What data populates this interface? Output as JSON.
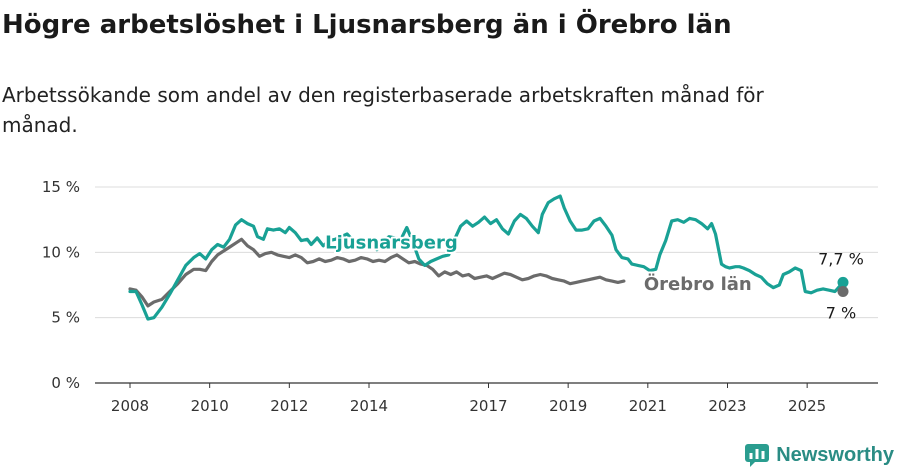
{
  "header": {
    "title": "Högre arbetslöshet i Ljusnarsberg än i Örebro län",
    "subtitle": "Arbetssökande som andel av den registerbaserade arbetskraften månad för månad."
  },
  "brand": {
    "name": "Newsworthy",
    "color": "#2a9d8f"
  },
  "chart_data": {
    "type": "line",
    "title": "Högre arbetslöshet i Ljusnarsberg än i Örebro län",
    "xlabel": "",
    "ylabel": "",
    "xlim": [
      2007.5,
      2025.9
    ],
    "ylim": [
      0,
      15
    ],
    "y_ticks": [
      0,
      5,
      10,
      15
    ],
    "y_tick_labels": [
      "0 %",
      "5 %",
      "10 %",
      "15 %"
    ],
    "x_ticks": [
      2008,
      2010,
      2012,
      2014,
      2017,
      2019,
      2021,
      2023,
      2025
    ],
    "x_tick_labels": [
      "2008",
      "2010",
      "2012",
      "2014",
      "2017",
      "2019",
      "2021",
      "2023",
      "2025"
    ],
    "grid": true,
    "series": [
      {
        "name": "Ljusnarsberg",
        "color": "#19a195",
        "end_label": "7,7 %",
        "points": [
          [
            2008.0,
            7.0
          ],
          [
            2008.15,
            7.0
          ],
          [
            2008.3,
            6.0
          ],
          [
            2008.45,
            4.9
          ],
          [
            2008.6,
            5.0
          ],
          [
            2008.8,
            5.8
          ],
          [
            2009.0,
            6.8
          ],
          [
            2009.2,
            7.9
          ],
          [
            2009.4,
            9.0
          ],
          [
            2009.6,
            9.6
          ],
          [
            2009.75,
            9.9
          ],
          [
            2009.9,
            9.5
          ],
          [
            2010.05,
            10.2
          ],
          [
            2010.2,
            10.6
          ],
          [
            2010.35,
            10.4
          ],
          [
            2010.5,
            11.0
          ],
          [
            2010.65,
            12.1
          ],
          [
            2010.8,
            12.5
          ],
          [
            2010.95,
            12.2
          ],
          [
            2011.1,
            12.0
          ],
          [
            2011.2,
            11.2
          ],
          [
            2011.35,
            11.0
          ],
          [
            2011.45,
            11.8
          ],
          [
            2011.6,
            11.7
          ],
          [
            2011.75,
            11.8
          ],
          [
            2011.9,
            11.5
          ],
          [
            2012.0,
            11.9
          ],
          [
            2012.15,
            11.5
          ],
          [
            2012.3,
            10.9
          ],
          [
            2012.45,
            11.0
          ],
          [
            2012.55,
            10.6
          ],
          [
            2012.7,
            11.1
          ],
          [
            2012.85,
            10.5
          ],
          [
            2013.0,
            10.9
          ],
          [
            2013.15,
            11.0
          ],
          [
            2013.3,
            11.2
          ],
          [
            2013.45,
            11.4
          ],
          [
            2013.6,
            10.9
          ],
          [
            2013.75,
            10.8
          ],
          [
            2013.9,
            11.0
          ],
          [
            2014.05,
            10.9
          ],
          [
            2014.2,
            10.2
          ],
          [
            2014.35,
            10.8
          ],
          [
            2014.5,
            11.2
          ],
          [
            2014.65,
            11.1
          ],
          [
            2014.8,
            11.0
          ],
          [
            2014.95,
            11.9
          ],
          [
            2015.1,
            10.8
          ],
          [
            2015.25,
            9.5
          ],
          [
            2015.4,
            9.0
          ],
          [
            2015.55,
            9.3
          ],
          [
            2015.7,
            9.5
          ],
          [
            2015.85,
            9.7
          ],
          [
            2016.0,
            9.8
          ],
          [
            2016.15,
            11.0
          ],
          [
            2016.3,
            12.0
          ],
          [
            2016.45,
            12.4
          ],
          [
            2016.6,
            12.0
          ],
          [
            2016.75,
            12.3
          ],
          [
            2016.9,
            12.7
          ],
          [
            2017.05,
            12.2
          ],
          [
            2017.2,
            12.5
          ],
          [
            2017.35,
            11.8
          ],
          [
            2017.5,
            11.4
          ],
          [
            2017.65,
            12.4
          ],
          [
            2017.8,
            12.9
          ],
          [
            2017.95,
            12.6
          ],
          [
            2018.1,
            12.0
          ],
          [
            2018.25,
            11.5
          ],
          [
            2018.35,
            12.9
          ],
          [
            2018.5,
            13.8
          ],
          [
            2018.65,
            14.1
          ],
          [
            2018.8,
            14.3
          ],
          [
            2018.9,
            13.4
          ],
          [
            2019.05,
            12.4
          ],
          [
            2019.2,
            11.7
          ],
          [
            2019.35,
            11.7
          ],
          [
            2019.5,
            11.8
          ],
          [
            2019.65,
            12.4
          ],
          [
            2019.8,
            12.6
          ],
          [
            2019.95,
            12.0
          ],
          [
            2020.1,
            11.3
          ],
          [
            2020.2,
            10.2
          ],
          [
            2020.35,
            9.6
          ],
          [
            2020.5,
            9.5
          ],
          [
            2020.6,
            9.1
          ],
          [
            2020.75,
            9.0
          ],
          [
            2020.9,
            8.9
          ],
          [
            2021.05,
            8.6
          ],
          [
            2021.2,
            8.7
          ],
          [
            2021.3,
            9.8
          ],
          [
            2021.45,
            10.9
          ],
          [
            2021.6,
            12.4
          ],
          [
            2021.75,
            12.5
          ],
          [
            2021.9,
            12.3
          ],
          [
            2022.05,
            12.6
          ],
          [
            2022.2,
            12.5
          ],
          [
            2022.35,
            12.2
          ],
          [
            2022.5,
            11.8
          ],
          [
            2022.6,
            12.2
          ],
          [
            2022.7,
            11.4
          ],
          [
            2022.85,
            9.1
          ],
          [
            2022.95,
            8.9
          ],
          [
            2023.05,
            8.8
          ],
          [
            2023.2,
            8.9
          ],
          [
            2023.3,
            8.9
          ],
          [
            2023.4,
            8.8
          ],
          [
            2023.55,
            8.6
          ],
          [
            2023.7,
            8.3
          ],
          [
            2023.85,
            8.1
          ],
          [
            2024.0,
            7.6
          ],
          [
            2024.15,
            7.3
          ],
          [
            2024.3,
            7.5
          ],
          [
            2024.4,
            8.3
          ],
          [
            2024.55,
            8.5
          ],
          [
            2024.7,
            8.8
          ],
          [
            2024.85,
            8.6
          ],
          [
            2024.95,
            7.0
          ],
          [
            2025.1,
            6.9
          ],
          [
            2025.25,
            7.1
          ],
          [
            2025.4,
            7.2
          ],
          [
            2025.55,
            7.1
          ],
          [
            2025.7,
            7.0
          ],
          [
            2025.9,
            7.7
          ]
        ]
      },
      {
        "name": "Örebro län",
        "color": "#6b6b6b",
        "end_label": "7 %",
        "points": [
          [
            2008.0,
            7.2
          ],
          [
            2008.15,
            7.1
          ],
          [
            2008.3,
            6.6
          ],
          [
            2008.45,
            5.9
          ],
          [
            2008.6,
            6.2
          ],
          [
            2008.8,
            6.4
          ],
          [
            2009.0,
            7.0
          ],
          [
            2009.2,
            7.6
          ],
          [
            2009.4,
            8.3
          ],
          [
            2009.6,
            8.7
          ],
          [
            2009.75,
            8.7
          ],
          [
            2009.9,
            8.6
          ],
          [
            2010.05,
            9.3
          ],
          [
            2010.2,
            9.8
          ],
          [
            2010.35,
            10.1
          ],
          [
            2010.5,
            10.4
          ],
          [
            2010.65,
            10.7
          ],
          [
            2010.8,
            11.0
          ],
          [
            2010.95,
            10.5
          ],
          [
            2011.1,
            10.2
          ],
          [
            2011.25,
            9.7
          ],
          [
            2011.4,
            9.9
          ],
          [
            2011.55,
            10.0
          ],
          [
            2011.7,
            9.8
          ],
          [
            2011.85,
            9.7
          ],
          [
            2012.0,
            9.6
          ],
          [
            2012.15,
            9.8
          ],
          [
            2012.3,
            9.6
          ],
          [
            2012.45,
            9.2
          ],
          [
            2012.6,
            9.3
          ],
          [
            2012.75,
            9.5
          ],
          [
            2012.9,
            9.3
          ],
          [
            2013.05,
            9.4
          ],
          [
            2013.2,
            9.6
          ],
          [
            2013.35,
            9.5
          ],
          [
            2013.5,
            9.3
          ],
          [
            2013.65,
            9.4
          ],
          [
            2013.8,
            9.6
          ],
          [
            2013.95,
            9.5
          ],
          [
            2014.1,
            9.3
          ],
          [
            2014.25,
            9.4
          ],
          [
            2014.4,
            9.3
          ],
          [
            2014.55,
            9.6
          ],
          [
            2014.7,
            9.8
          ],
          [
            2014.85,
            9.5
          ],
          [
            2015.0,
            9.2
          ],
          [
            2015.15,
            9.3
          ],
          [
            2015.3,
            9.1
          ],
          [
            2015.45,
            9.0
          ],
          [
            2015.6,
            8.7
          ],
          [
            2015.75,
            8.2
          ],
          [
            2015.9,
            8.5
          ],
          [
            2016.05,
            8.3
          ],
          [
            2016.2,
            8.5
          ],
          [
            2016.35,
            8.2
          ],
          [
            2016.5,
            8.3
          ],
          [
            2016.65,
            8.0
          ],
          [
            2016.8,
            8.1
          ],
          [
            2016.95,
            8.2
          ],
          [
            2017.1,
            8.0
          ],
          [
            2017.25,
            8.2
          ],
          [
            2017.4,
            8.4
          ],
          [
            2017.55,
            8.3
          ],
          [
            2017.7,
            8.1
          ],
          [
            2017.85,
            7.9
          ],
          [
            2018.0,
            8.0
          ],
          [
            2018.15,
            8.2
          ],
          [
            2018.3,
            8.3
          ],
          [
            2018.45,
            8.2
          ],
          [
            2018.6,
            8.0
          ],
          [
            2018.75,
            7.9
          ],
          [
            2018.9,
            7.8
          ],
          [
            2019.05,
            7.6
          ],
          [
            2019.2,
            7.7
          ],
          [
            2019.35,
            7.8
          ],
          [
            2019.5,
            7.9
          ],
          [
            2019.65,
            8.0
          ],
          [
            2019.8,
            8.1
          ],
          [
            2019.95,
            7.9
          ],
          [
            2020.1,
            7.8
          ],
          [
            2020.25,
            7.7
          ],
          [
            2020.4,
            7.8
          ]
        ]
      }
    ],
    "annotations": [
      {
        "text": "Ljusnarsberg",
        "series": "Ljusnarsberg",
        "x": 2012.9,
        "y": 10.3
      },
      {
        "text": "Örebro län",
        "series": "Örebro län",
        "x": 2020.9,
        "y": 7.1
      }
    ]
  }
}
